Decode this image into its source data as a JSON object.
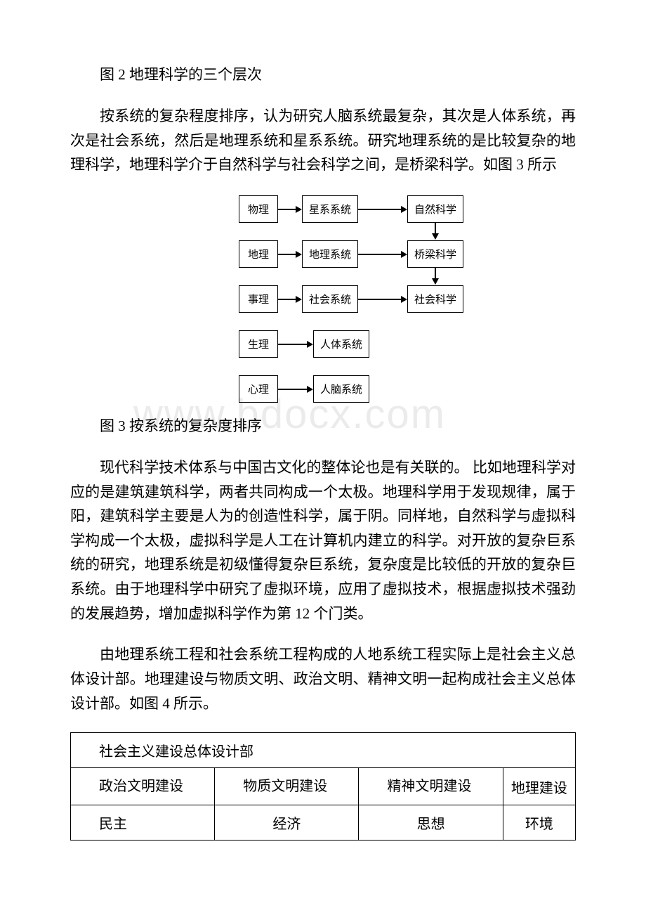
{
  "caption1": "图 2 地理科学的三个层次",
  "para1": "按系统的复杂程度排序，认为研究人脑系统最复杂，其次是人体系统，再次是社会系统，然后是地理系统和星系系统。研究地理系统的是比较复杂的地理科学，地理科学介于自然科学与社会科学之间，是桥梁科学。如图 3 所示",
  "diagram": {
    "box_border_color": "#000000",
    "box_bg": "#ffffff",
    "font_size": 15,
    "arrow_color": "#000000",
    "rows": [
      {
        "a": "物理",
        "b": "星系系统",
        "c": "自然科学",
        "ab": true,
        "bc": true
      },
      {
        "a": "地理",
        "b": "地理系统",
        "c": "桥梁科学",
        "ab": true,
        "bc": true
      },
      {
        "a": "事理",
        "b": "社会系统",
        "c": "社会科学",
        "ab": true,
        "bc": true
      },
      {
        "a": "生理",
        "b": "人体系统",
        "c": "",
        "ab": true,
        "bc": false
      },
      {
        "a": "心理",
        "b": "人脑系统",
        "c": "",
        "ab": true,
        "bc": false
      }
    ],
    "vertical_arrows": [
      {
        "from_row": 0,
        "to_row": 1,
        "col": "c"
      },
      {
        "from_row": 1,
        "to_row": 2,
        "col": "c"
      }
    ]
  },
  "watermark": "www.bdocx.com",
  "caption2": "图 3 按系统的复杂度排序",
  "para2": "现代科学技术体系与中国古文化的整体论也是有关联的。 比如地理科学对应的是建筑建筑科学，两者共同构成一个太极。地理科学用于发现规律，属于阳，建筑科学主要是人为的创造性科学，属于阴。同样地，自然科学与虚拟科学构成一个太极，虚拟科学是人工在计算机内建立的科学。对开放的复杂巨系统的研究，地理系统是初级懂得复杂巨系统，复杂度是比较低的开放的复杂巨系统。由于地理科学中研究了虚拟环境，应用了虚拟技术，根据虚拟技术强劲的发展趋势，增加虚拟科学作为第 12 个门类。",
  "para3": "由地理系统工程和社会系统工程构成的人地系统工程实际上是社会主义总体设计部。地理建设与物质文明、政治文明、精神文明一起构成社会主义总体设计部。如图 4 所示。",
  "table": {
    "border_color": "#000000",
    "header": "社会主义建设总体设计部",
    "row2": [
      "政治文明建设",
      "物质文明建设",
      "精神文明建设",
      "地理建设"
    ],
    "row3": [
      "民主",
      "经济",
      "思想",
      "环境"
    ],
    "col_widths_pct": [
      25,
      25,
      25,
      25
    ]
  }
}
